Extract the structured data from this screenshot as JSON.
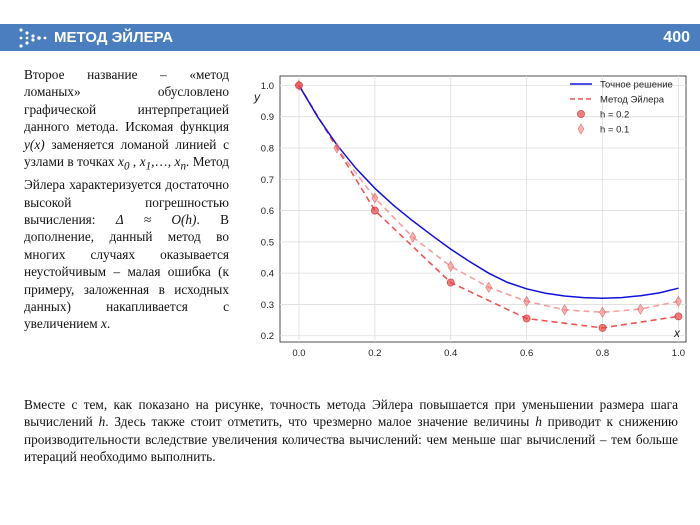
{
  "header": {
    "title": "МЕТОД ЭЙЛЕРА",
    "page_number": "400",
    "accent_color": "#4a7ebf"
  },
  "left_paragraph": {
    "p1": "Второе название – «метод ломаных» обусловлено графической интерпретацией данного метода. Искомая функция ",
    "func": "y(x)",
    "p2": " заменяется ломаной линией с узлами в точках ",
    "x0": "x",
    "x0_sub": "0",
    "sep1": " , ",
    "x1": "x",
    "x1_sub": "1",
    "dots": ",…, ",
    "xn": "x",
    "xn_sub": "n",
    "p3": ". Метод Эйлера характеризуется достаточно высокой погрешностью вычисления: ",
    "delta": "Δ ≈ O(h)",
    "p4": ". В дополнение, данный метод во многих случаях оказывается неустойчивым – малая ошибка (к примеру, заложенная в исходных данных) накапливается с увеличением ",
    "xvar": "x",
    "p5": "."
  },
  "bottom_paragraph": {
    "p1": "Вместе с тем, как показано на рисунке, точность метода Эйлера повышается при уменьшении размера шага вычислений ",
    "h1": "h",
    "p2": ". Здесь также стоит отметить, что чрезмерно малое значение величины ",
    "h2": "h",
    "p3": " приводит к снижению производительности вследствие увеличения количества вычислений: чем меньше шаг вычислений – тем больше итераций необходимо выполнить."
  },
  "chart_data": {
    "type": "line",
    "xlabel": "x",
    "ylabel": "y",
    "xlim": [
      -0.05,
      1.02
    ],
    "ylim": [
      0.18,
      1.03
    ],
    "xticks": [
      0.0,
      0.2,
      0.4,
      0.6,
      0.8,
      1.0
    ],
    "yticks": [
      0.2,
      0.3,
      0.4,
      0.5,
      0.6,
      0.7,
      0.8,
      0.9,
      1.0
    ],
    "xtick_labels": [
      "0.0",
      "0.2",
      "0.4",
      "0.6",
      "0.8",
      "1.0"
    ],
    "ytick_labels": [
      "0.2",
      "0.3",
      "0.4",
      "0.5",
      "0.6",
      "0.7",
      "0.8",
      "0.9",
      "1.0"
    ],
    "grid": true,
    "legend_position": "top-right",
    "legend": [
      "Точное решение",
      "Метод Эйлера",
      "h = 0.2",
      "h = 0.1"
    ],
    "exact": {
      "color": "#1010dd",
      "x": [
        0.0,
        0.05,
        0.1,
        0.15,
        0.2,
        0.25,
        0.3,
        0.35,
        0.4,
        0.45,
        0.5,
        0.55,
        0.6,
        0.65,
        0.7,
        0.75,
        0.8,
        0.85,
        0.9,
        0.95,
        1.0
      ],
      "y": [
        1.0,
        0.898,
        0.81,
        0.735,
        0.671,
        0.616,
        0.567,
        0.521,
        0.477,
        0.437,
        0.4,
        0.37,
        0.35,
        0.336,
        0.327,
        0.322,
        0.32,
        0.322,
        0.328,
        0.337,
        0.352
      ]
    },
    "euler_h02": {
      "color": "#ee5555",
      "x": [
        0.0,
        0.2,
        0.4,
        0.6,
        0.8,
        1.0
      ],
      "y": [
        1.0,
        0.6,
        0.37,
        0.255,
        0.225,
        0.262
      ]
    },
    "euler_h01": {
      "color": "#f4a0a0",
      "x": [
        0.0,
        0.1,
        0.2,
        0.3,
        0.4,
        0.5,
        0.6,
        0.7,
        0.8,
        0.9,
        1.0
      ],
      "y": [
        1.0,
        0.8,
        0.64,
        0.515,
        0.422,
        0.355,
        0.31,
        0.283,
        0.275,
        0.285,
        0.31
      ]
    }
  }
}
